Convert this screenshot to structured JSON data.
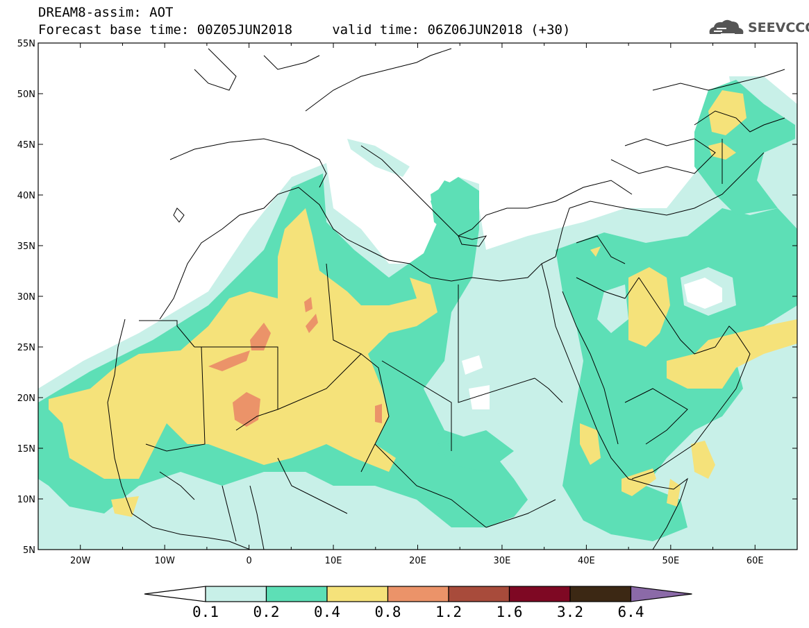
{
  "header": {
    "title": "DREAM8-assim: AOT",
    "subtitle": "Forecast base time: 00Z05JUN2018     valid time: 06Z06JUN2018 (+30)"
  },
  "logo": {
    "text": "SEEVCCC",
    "icon": "cloud-icon"
  },
  "map": {
    "lon_range": [
      -25,
      65
    ],
    "lat_range": [
      5,
      55
    ],
    "lat_ticks": [
      {
        "value": 55,
        "label": "55N"
      },
      {
        "value": 50,
        "label": "50N"
      },
      {
        "value": 45,
        "label": "45N"
      },
      {
        "value": 40,
        "label": "40N"
      },
      {
        "value": 35,
        "label": "35N"
      },
      {
        "value": 30,
        "label": "30N"
      },
      {
        "value": 25,
        "label": "25N"
      },
      {
        "value": 20,
        "label": "20N"
      },
      {
        "value": 15,
        "label": "15N"
      },
      {
        "value": 10,
        "label": "10N"
      },
      {
        "value": 5,
        "label": "5N"
      }
    ],
    "lon_ticks": [
      {
        "value": -20,
        "label": "20W"
      },
      {
        "value": -10,
        "label": "10W"
      },
      {
        "value": 0,
        "label": "0"
      },
      {
        "value": 10,
        "label": "10E"
      },
      {
        "value": 20,
        "label": "20E"
      },
      {
        "value": 30,
        "label": "30E"
      },
      {
        "value": 40,
        "label": "40E"
      },
      {
        "value": 50,
        "label": "50E"
      },
      {
        "value": 60,
        "label": "60E"
      }
    ]
  },
  "colorbar": {
    "labels": [
      "0.1",
      "0.2",
      "0.4",
      "0.8",
      "1.2",
      "1.6",
      "3.2",
      "6.4"
    ],
    "colors": [
      "#ffffff",
      "#c8f0e8",
      "#5ddfb6",
      "#f5e27a",
      "#eb9369",
      "#a84b3b",
      "#7e0823",
      "#3c2814",
      "#8b6aa8"
    ]
  }
}
